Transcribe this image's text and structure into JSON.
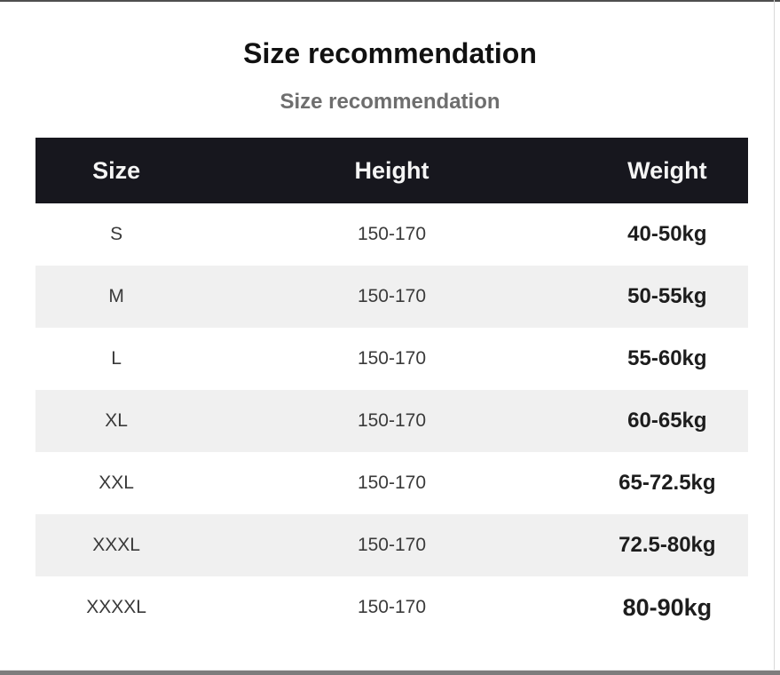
{
  "colors": {
    "header_bg": "#17171e",
    "header_text": "#f5f5f5",
    "alt_row_bg": "#f0f0f0",
    "title_text": "#111111",
    "subtitle_text": "#6e6e6e",
    "body_text": "#3a3a3a",
    "weight_text": "#1d1d1d",
    "top_edge": "#4f4f4f",
    "bottom_edge": "#7d7d7d"
  },
  "chart_data": {
    "type": "table",
    "title": "Size recommendation",
    "subtitle": "Size recommendation",
    "columns": [
      "Size",
      "Height",
      "Weight"
    ],
    "rows": [
      {
        "size": "S",
        "height": "150-170",
        "weight": "40-50kg"
      },
      {
        "size": "M",
        "height": "150-170",
        "weight": "50-55kg"
      },
      {
        "size": "L",
        "height": "150-170",
        "weight": "55-60kg"
      },
      {
        "size": "XL",
        "height": "150-170",
        "weight": "60-65kg"
      },
      {
        "size": "XXL",
        "height": "150-170",
        "weight": "65-72.5kg"
      },
      {
        "size": "XXXL",
        "height": "150-170",
        "weight": "72.5-80kg"
      },
      {
        "size": "XXXXL",
        "height": "150-170",
        "weight": "80-90kg"
      }
    ],
    "layout_hints": {
      "header_style": "dark-bar",
      "striped_rows": [
        "M",
        "XL",
        "XXXL"
      ],
      "weight_column_bold": true
    }
  }
}
